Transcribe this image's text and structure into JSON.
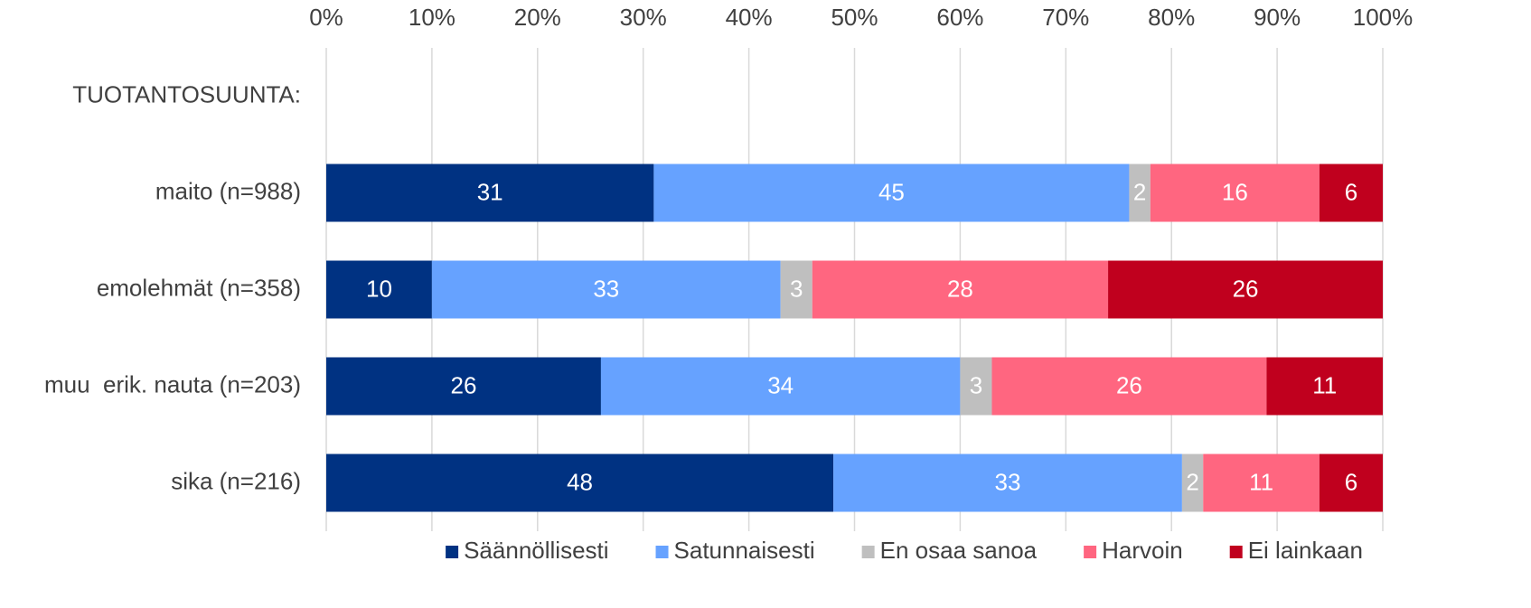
{
  "chart_data": {
    "type": "stacked_bar_horizontal",
    "categories": [
      "TUOTANTOSUUNTA:",
      "maito (n=988)",
      "emolehmät (n=358)",
      "muu  erik. nauta (n=203)",
      "sika (n=216)"
    ],
    "series": [
      {
        "name": "Säännöllisesti",
        "color": "#003282",
        "values": [
          null,
          31,
          10,
          26,
          48
        ]
      },
      {
        "name": "Satunnaisesti",
        "color": "#66a2ff",
        "values": [
          null,
          45,
          33,
          34,
          33
        ]
      },
      {
        "name": "En osaa sanoa",
        "color": "#bfbfbf",
        "values": [
          null,
          2,
          3,
          3,
          2
        ]
      },
      {
        "name": "Harvoin",
        "color": "#ff6680",
        "values": [
          null,
          16,
          28,
          26,
          11
        ]
      },
      {
        "name": "Ei lainkaan",
        "color": "#c0001e",
        "values": [
          null,
          6,
          26,
          11,
          6
        ]
      }
    ],
    "xlim": [
      0,
      100
    ],
    "xticks": [
      {
        "value": 0,
        "label": "0%"
      },
      {
        "value": 10,
        "label": "10%"
      },
      {
        "value": 20,
        "label": "20%"
      },
      {
        "value": 30,
        "label": "30%"
      },
      {
        "value": 40,
        "label": "40%"
      },
      {
        "value": 50,
        "label": "50%"
      },
      {
        "value": 60,
        "label": "60%"
      },
      {
        "value": 70,
        "label": "70%"
      },
      {
        "value": 80,
        "label": "80%"
      },
      {
        "value": 90,
        "label": "90%"
      },
      {
        "value": 100,
        "label": "100%"
      }
    ],
    "grid": true,
    "legend": "bottom"
  }
}
